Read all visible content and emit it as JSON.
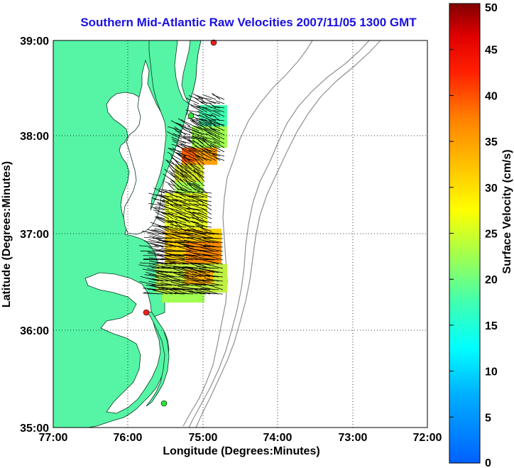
{
  "title": "Southern Mid-Atlantic Raw Velocities 2007/11/05 1300 GMT",
  "map": {
    "xlabel": "Longitude (Degrees:Minutes)",
    "ylabel": "Latitude (Degrees:Minutes)",
    "lon_ticks": [
      "77:00",
      "76:00",
      "75:00",
      "74:00",
      "73:00",
      "72:00"
    ],
    "lat_ticks": [
      "39:00",
      "38:00",
      "37:00",
      "36:00",
      "35:00"
    ],
    "lon_range": [
      -77,
      -72
    ],
    "lat_range": [
      35,
      39
    ],
    "grid": "dotted",
    "colors": {
      "land": "#55f5a5",
      "coastline": "#0a3a22",
      "bathymetry": "#909090",
      "site_green": "#30e040",
      "site_red": "#ee2020",
      "grid": "#000000"
    },
    "stations": [
      {
        "name": "north-site",
        "color": "red",
        "lon": -74.85,
        "lat": 38.95
      },
      {
        "name": "cape-henlopen-site",
        "color": "green",
        "lon": -75.08,
        "lat": 38.2
      },
      {
        "name": "outer-banks-site",
        "color": "red",
        "lon": -75.75,
        "lat": 36.17
      },
      {
        "name": "cape-hatteras-site",
        "color": "green",
        "lon": -75.47,
        "lat": 35.27
      }
    ]
  },
  "colorbar": {
    "label": "Surface Velocity (cm/s)",
    "ticks": [
      "0",
      "5",
      "10",
      "15",
      "20",
      "25",
      "30",
      "35",
      "40",
      "45",
      "50"
    ],
    "min": 0,
    "max": 50,
    "colormap": "jet"
  }
}
